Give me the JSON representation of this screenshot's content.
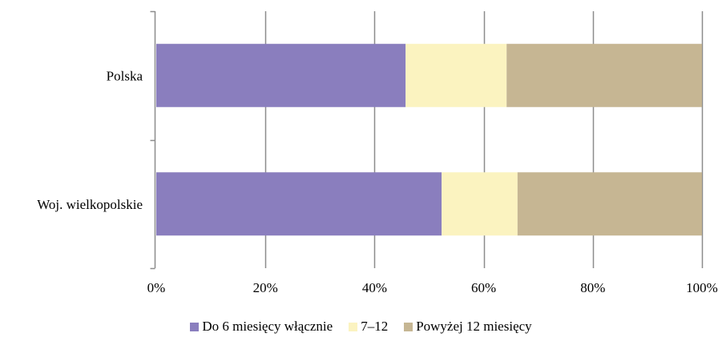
{
  "chart_data": {
    "type": "bar",
    "orientation": "horizontal",
    "stacked": "percent",
    "categories": [
      "Polska",
      "Woj. wielkopolskie"
    ],
    "series": [
      {
        "name": "Do 6 miesięcy włącznie",
        "values": [
          45.7,
          52.3
        ],
        "color": "#8A7EBE"
      },
      {
        "name": "7–12",
        "values": [
          18.5,
          13.9
        ],
        "color": "#FBF3C0"
      },
      {
        "name": "Powyżej 12 miesięcy",
        "values": [
          35.8,
          33.8
        ],
        "color": "#C6B693"
      }
    ],
    "xlim": [
      0,
      100
    ],
    "x_ticks": [
      "0%",
      "20%",
      "40%",
      "60%",
      "80%",
      "100%"
    ],
    "x_tick_values": [
      0,
      20,
      40,
      60,
      80,
      100
    ],
    "gridlines": "vertical",
    "grid_color": "#8C8C8C",
    "legend_position": "bottom"
  }
}
